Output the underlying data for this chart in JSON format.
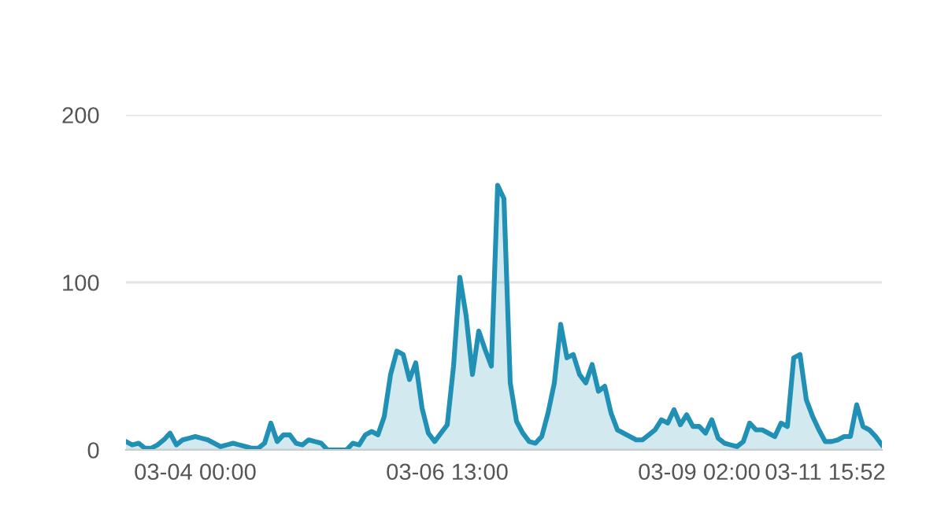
{
  "chart_data": {
    "type": "area",
    "color": "#2190b5",
    "categories": [
      null,
      null,
      null,
      null,
      null,
      null,
      null,
      null,
      null,
      null,
      null,
      "03-04 00:00",
      null,
      null,
      null,
      null,
      null,
      null,
      null,
      null,
      null,
      null,
      null,
      null,
      null,
      null,
      null,
      null,
      null,
      null,
      null,
      null,
      null,
      null,
      null,
      null,
      null,
      null,
      null,
      null,
      null,
      null,
      null,
      null,
      null,
      null,
      null,
      null,
      null,
      null,
      null,
      "03-06 13:00",
      null,
      null,
      null,
      null,
      null,
      null,
      null,
      null,
      null,
      null,
      null,
      null,
      null,
      null,
      null,
      null,
      null,
      null,
      null,
      null,
      null,
      null,
      null,
      null,
      null,
      null,
      null,
      null,
      null,
      null,
      null,
      null,
      null,
      null,
      null,
      null,
      null,
      null,
      null,
      "03-09 02:00",
      null,
      null,
      null,
      null,
      null,
      null,
      null,
      null,
      null,
      null,
      null,
      null,
      null,
      null,
      null,
      null,
      null,
      null,
      null,
      "03-11 15:52",
      null,
      null,
      null,
      null,
      null,
      null,
      null,
      null,
      null
    ],
    "values": [
      5,
      3,
      4,
      1,
      1,
      3,
      6,
      10,
      3,
      6,
      7,
      8,
      7,
      6,
      4,
      2,
      3,
      4,
      3,
      2,
      1,
      1,
      4,
      16,
      5,
      9,
      9,
      4,
      3,
      6,
      5,
      4,
      0,
      0,
      0,
      0,
      4,
      3,
      9,
      11,
      9,
      20,
      45,
      59,
      57,
      42,
      52,
      25,
      10,
      5,
      10,
      15,
      50,
      103,
      80,
      45,
      71,
      60,
      50,
      158,
      150,
      40,
      17,
      10,
      5,
      4,
      8,
      22,
      40,
      75,
      55,
      57,
      45,
      40,
      51,
      35,
      38,
      22,
      12,
      10,
      8,
      6,
      6,
      9,
      12,
      18,
      16,
      24,
      15,
      21,
      14,
      14,
      10,
      18,
      7,
      4,
      3,
      2,
      5,
      16,
      12,
      12,
      10,
      8,
      16,
      14,
      55,
      57,
      30,
      20,
      12,
      5,
      5,
      6,
      8,
      8,
      27,
      14,
      12,
      8,
      3
    ],
    "ylim": [
      0,
      200
    ],
    "yticks": [
      0,
      100,
      200
    ],
    "grid": "y"
  }
}
